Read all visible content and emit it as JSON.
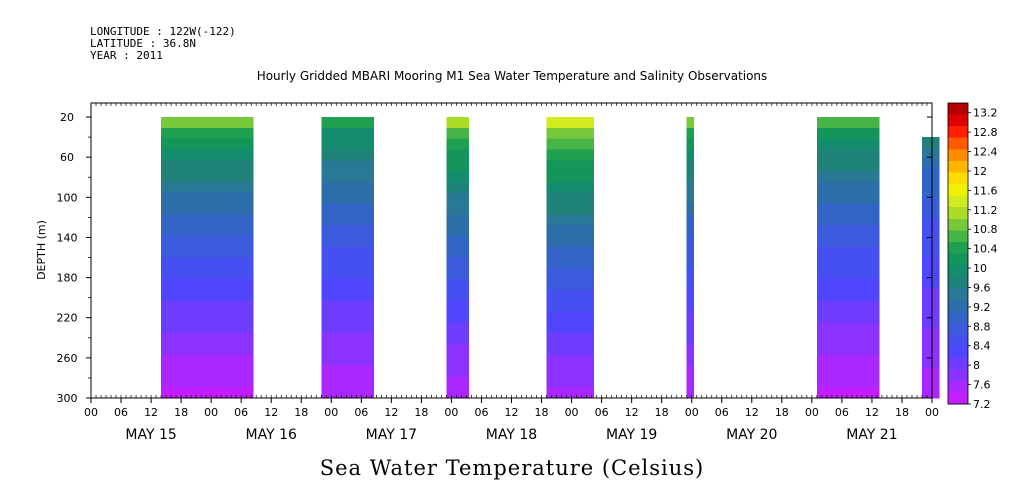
{
  "header": {
    "longitude": "LONGITUDE : 122W(-122)",
    "latitude": "LATITUDE : 36.8N",
    "year": "YEAR : 2011"
  },
  "chart_data": {
    "type": "heatmap",
    "title": "Hourly Gridded MBARI Mooring M1 Sea Water Temperature and Salinity Observations",
    "xlabel": "Sea Water Temperature (Celsius)",
    "ylabel": "DEPTH (m)",
    "y_ticks": [
      20,
      60,
      100,
      140,
      180,
      220,
      260,
      300
    ],
    "y_range": [
      6,
      300
    ],
    "y_inverted": true,
    "x_range_hours": [
      0,
      168
    ],
    "x_hour_ticks": [
      "00",
      "06",
      "12",
      "18",
      "00",
      "06",
      "12",
      "18",
      "00",
      "06",
      "12",
      "18",
      "00",
      "06",
      "12",
      "18",
      "00",
      "06",
      "12",
      "18",
      "00",
      "06",
      "12",
      "18",
      "00",
      "06",
      "12",
      "18",
      "00"
    ],
    "day_labels": [
      "MAY 15",
      "MAY 16",
      "MAY 17",
      "MAY 18",
      "MAY 19",
      "MAY 20",
      "MAY 21"
    ],
    "colorbar": {
      "min": 7.2,
      "max": 13.4,
      "labels": [
        "13.2",
        "12.8",
        "12.4",
        "12",
        "11.6",
        "11.2",
        "10.8",
        "10.4",
        "10",
        "9.6",
        "9.2",
        "8.8",
        "8.4",
        "8",
        "7.6",
        "7.2"
      ],
      "colors": [
        "#b40000",
        "#dc0000",
        "#ff1e00",
        "#ff5a00",
        "#ff8c00",
        "#ffb400",
        "#ffdc00",
        "#f0f000",
        "#d2eb1e",
        "#aadc28",
        "#78c83c",
        "#46b446",
        "#1ea050",
        "#14965a",
        "#148c6e",
        "#1e8278",
        "#287896",
        "#2d6eaa",
        "#3264c8",
        "#3c5adc",
        "#4650f0",
        "#5046ff",
        "#6e3cff",
        "#8c32ff",
        "#aa28ff",
        "#c31eff"
      ]
    },
    "segments": [
      {
        "start": 14.0,
        "end": 32.5,
        "top_depth": 20,
        "surface_temp": 10.8,
        "bottom_temp": 7.3
      },
      {
        "start": 46.0,
        "end": 56.5,
        "top_depth": 20,
        "surface_temp": 10.4,
        "bottom_temp": 7.4
      },
      {
        "start": 71.0,
        "end": 75.5,
        "top_depth": 20,
        "surface_temp": 11.2,
        "bottom_temp": 7.4
      },
      {
        "start": 91.0,
        "end": 100.5,
        "top_depth": 20,
        "surface_temp": 11.4,
        "bottom_temp": 7.5
      },
      {
        "start": 119.0,
        "end": 120.5,
        "top_depth": 20,
        "surface_temp": 10.8,
        "bottom_temp": 7.4
      },
      {
        "start": 145.0,
        "end": 157.5,
        "top_depth": 20,
        "surface_temp": 10.6,
        "bottom_temp": 7.3
      },
      {
        "start": 166.0,
        "end": 169.5,
        "top_depth": 40,
        "surface_temp": 9.6,
        "bottom_temp": 7.5
      }
    ]
  }
}
